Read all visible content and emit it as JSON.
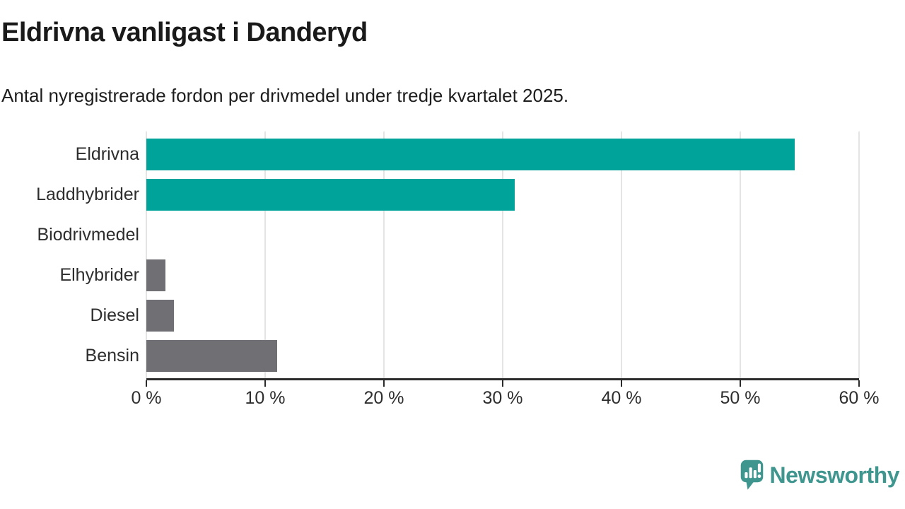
{
  "header": {
    "title": "Eldrivna vanligast i Danderyd",
    "subtitle": "Antal nyregistrerade fordon per drivmedel under tredje kvartalet 2025."
  },
  "chart_data": {
    "type": "bar",
    "orientation": "horizontal",
    "title": "Eldrivna vanligast i Danderyd",
    "subtitle": "Antal nyregistrerade fordon per drivmedel under tredje kvartalet 2025.",
    "categories": [
      "Eldrivna",
      "Laddhybrider",
      "Biodrivmedel",
      "Elhybrider",
      "Diesel",
      "Bensin"
    ],
    "values": [
      54.6,
      31.0,
      0,
      1.6,
      2.3,
      11.0
    ],
    "unit": "%",
    "bar_colors": [
      "#00A39A",
      "#00A39A",
      "#6F6F74",
      "#6F6F74",
      "#6F6F74",
      "#6F6F74"
    ],
    "xlim": [
      0,
      60
    ],
    "x_ticks": [
      "0 %",
      "10 %",
      "20 %",
      "30 %",
      "40 %",
      "50 %",
      "60 %"
    ],
    "x_tick_values": [
      0,
      10,
      20,
      30,
      40,
      50,
      60
    ],
    "grid": "vertical",
    "legend": "none",
    "xlabel": "",
    "ylabel": ""
  },
  "footer": {
    "brand": "Newsworthy",
    "logo_icon": "speech-bubble-bar-chart-icon"
  },
  "colors": {
    "accent_teal": "#00A39A",
    "neutral_gray": "#6F6F74",
    "brand_teal": "#3F968F",
    "axis": "#2B2B2B",
    "gridline": "#E4E4E4",
    "text_dark": "#1A1A1A",
    "text_label": "#2E2E2E"
  }
}
